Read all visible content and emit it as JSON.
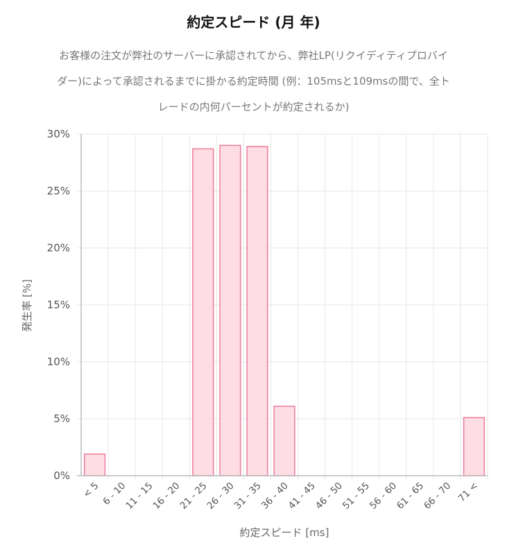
{
  "chart_data": {
    "type": "bar",
    "title": "約定スピード (月 年)",
    "subtitle": "お客様の注文が弊社のサーバーに承認されてから、弊社LP(リクイディティプロバイダー)によって承認されるまでに掛かる約定時間 (例：105msと109msの間で、全トレードの内何パーセントが約定されるか)",
    "xlabel": "約定スピード [ms]",
    "ylabel": "発生率 [%]",
    "categories": [
      "< 5",
      "6 - 10",
      "11 - 15",
      "16 - 20",
      "21 - 25",
      "26 - 30",
      "31 - 35",
      "36 - 40",
      "41 - 45",
      "46 - 50",
      "51 - 55",
      "56 - 60",
      "61 - 65",
      "66 - 70",
      "71 <"
    ],
    "values": [
      1.9,
      0,
      0,
      0,
      28.7,
      29.0,
      28.9,
      6.1,
      0,
      0,
      0,
      0,
      0,
      0,
      5.1
    ],
    "ylim": [
      0,
      30
    ],
    "yticks": [
      "0%",
      "5%",
      "10%",
      "15%",
      "20%",
      "25%",
      "30%"
    ],
    "grid": true,
    "colors": {
      "bar_fill": "#ffdde4",
      "bar_stroke": "#ec7a9a",
      "grid": "#e6e6e6",
      "axis": "#bbbbbb"
    }
  }
}
